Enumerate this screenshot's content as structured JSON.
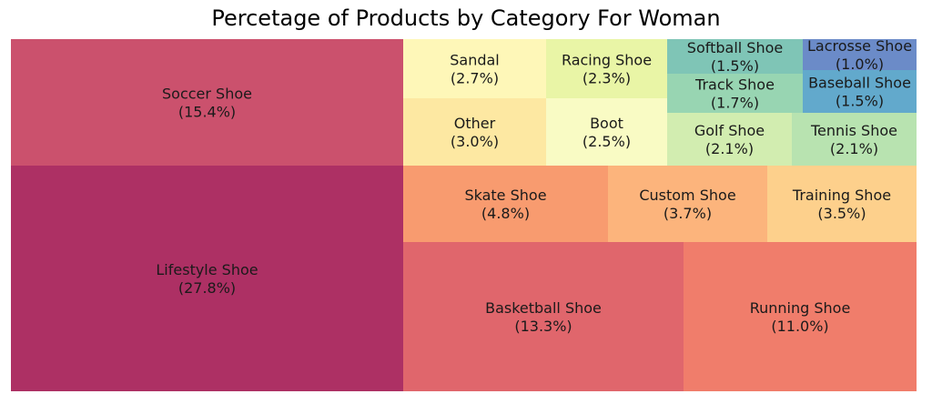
{
  "chart_data": {
    "type": "treemap",
    "title": "Percetage of Products by Category For Woman",
    "cells": [
      {
        "name": "Lifestyle Shoe",
        "label": "(27.8%)",
        "value": 27.8,
        "color": "#ad3064"
      },
      {
        "name": "Soccer Shoe",
        "label": "(15.4%)",
        "value": 15.4,
        "color": "#cb516d"
      },
      {
        "name": "Basketball Shoe",
        "label": "(13.3%)",
        "value": 13.3,
        "color": "#e0666c"
      },
      {
        "name": "Running Shoe",
        "label": "(11.0%)",
        "value": 11.0,
        "color": "#f07d6b"
      },
      {
        "name": "Skate Shoe",
        "label": "(4.8%)",
        "value": 4.8,
        "color": "#f89b6f"
      },
      {
        "name": "Custom Shoe",
        "label": "(3.7%)",
        "value": 3.7,
        "color": "#fcb47c"
      },
      {
        "name": "Training Shoe",
        "label": "(3.5%)",
        "value": 3.5,
        "color": "#fdd08c"
      },
      {
        "name": "Other",
        "label": "(3.0%)",
        "value": 3.0,
        "color": "#fde8a2"
      },
      {
        "name": "Sandal",
        "label": "(2.7%)",
        "value": 2.7,
        "color": "#fef7b8"
      },
      {
        "name": "Boot",
        "label": "(2.5%)",
        "value": 2.5,
        "color": "#f9fbc4"
      },
      {
        "name": "Racing Shoe",
        "label": "(2.3%)",
        "value": 2.3,
        "color": "#e9f5a6"
      },
      {
        "name": "Golf Shoe",
        "label": "(2.1%)",
        "value": 2.1,
        "color": "#d2edb0"
      },
      {
        "name": "Tennis Shoe",
        "label": "(2.1%)",
        "value": 2.1,
        "color": "#b8e3b0"
      },
      {
        "name": "Track Shoe",
        "label": "(1.7%)",
        "value": 1.7,
        "color": "#98d5b2"
      },
      {
        "name": "Softball Shoe",
        "label": "(1.5%)",
        "value": 1.5,
        "color": "#7fc5b6"
      },
      {
        "name": "Baseball Shoe",
        "label": "(1.5%)",
        "value": 1.5,
        "color": "#62a9cc"
      },
      {
        "name": "Lacrosse Shoe",
        "label": "(1.0%)",
        "value": 1.0,
        "color": "#6b8bc8"
      }
    ]
  }
}
